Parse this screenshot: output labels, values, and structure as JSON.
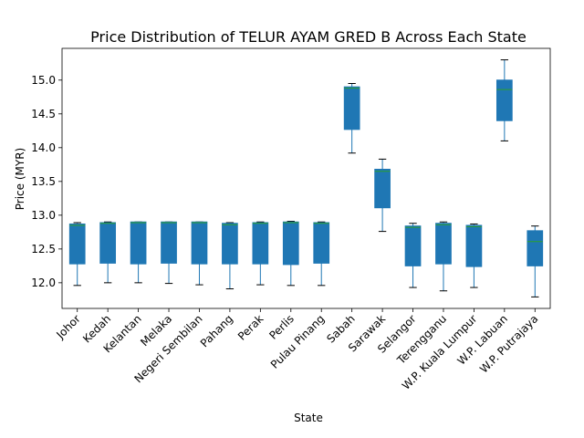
{
  "chart_data": {
    "type": "box",
    "title": "Price Distribution of TELUR AYAM GRED B Across Each State",
    "xlabel": "State",
    "ylabel": "Price (MYR)",
    "ylim": [
      11.62,
      15.47
    ],
    "yticks": [
      "12.0",
      "12.5",
      "13.0",
      "13.5",
      "14.0",
      "14.5",
      "15.0"
    ],
    "grid": false,
    "box_color": "#1f77b4",
    "median_color": "#2ca02c",
    "categories": [
      "Johor",
      "Kedah",
      "Kelantan",
      "Melaka",
      "Negeri Sembilan",
      "Pahang",
      "Perak",
      "Perlis",
      "Pulau Pinang",
      "Sabah",
      "Sarawak",
      "Selangor",
      "Terengganu",
      "W.P. Kuala Lumpur",
      "W.P. Labuan",
      "W.P. Putrajaya"
    ],
    "boxes": [
      {
        "state": "Johor",
        "min": 11.96,
        "q1": 12.28,
        "median": 12.85,
        "q3": 12.87,
        "max": 12.89
      },
      {
        "state": "Kedah",
        "min": 12.0,
        "q1": 12.29,
        "median": 12.88,
        "q3": 12.89,
        "max": 12.9
      },
      {
        "state": "Kelantan",
        "min": 12.0,
        "q1": 12.28,
        "median": 12.89,
        "q3": 12.9,
        "max": 12.9
      },
      {
        "state": "Melaka",
        "min": 11.99,
        "q1": 12.29,
        "median": 12.89,
        "q3": 12.9,
        "max": 12.9
      },
      {
        "state": "Negeri Sembilan",
        "min": 11.97,
        "q1": 12.28,
        "median": 12.89,
        "q3": 12.9,
        "max": 12.9
      },
      {
        "state": "Pahang",
        "min": 11.91,
        "q1": 12.28,
        "median": 12.86,
        "q3": 12.88,
        "max": 12.89
      },
      {
        "state": "Perak",
        "min": 11.97,
        "q1": 12.28,
        "median": 12.88,
        "q3": 12.89,
        "max": 12.9
      },
      {
        "state": "Perlis",
        "min": 11.96,
        "q1": 12.27,
        "median": 12.89,
        "q3": 12.9,
        "max": 12.91
      },
      {
        "state": "Pulau Pinang",
        "min": 11.96,
        "q1": 12.29,
        "median": 12.88,
        "q3": 12.89,
        "max": 12.9
      },
      {
        "state": "Sabah",
        "min": 13.92,
        "q1": 14.27,
        "median": 14.88,
        "q3": 14.9,
        "max": 14.95
      },
      {
        "state": "Sarawak",
        "min": 12.76,
        "q1": 13.11,
        "median": 13.65,
        "q3": 13.68,
        "max": 13.83
      },
      {
        "state": "Selangor",
        "min": 11.93,
        "q1": 12.25,
        "median": 12.82,
        "q3": 12.84,
        "max": 12.88
      },
      {
        "state": "Terengganu",
        "min": 11.88,
        "q1": 12.28,
        "median": 12.86,
        "q3": 12.88,
        "max": 12.9
      },
      {
        "state": "W.P. Kuala Lumpur",
        "min": 11.93,
        "q1": 12.24,
        "median": 12.83,
        "q3": 12.85,
        "max": 12.87
      },
      {
        "state": "W.P. Labuan",
        "min": 14.1,
        "q1": 14.4,
        "median": 14.86,
        "q3": 15.0,
        "max": 15.3
      },
      {
        "state": "W.P. Putrajaya",
        "min": 11.79,
        "q1": 12.25,
        "median": 12.61,
        "q3": 12.77,
        "max": 12.84
      }
    ]
  }
}
